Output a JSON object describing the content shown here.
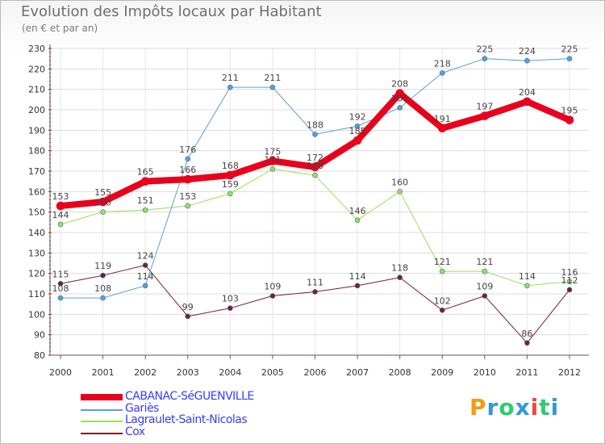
{
  "title": "Evolution des Impôts locaux par Habitant",
  "subtitle": "(en € et par an)",
  "brand": {
    "text": "Proxiti",
    "colors": [
      "#f39c12",
      "#3498db",
      "#2ecc71",
      "#3498db",
      "#e74c3c",
      "#2ecc71",
      "#3498db"
    ]
  },
  "chart_data": {
    "type": "line",
    "title": "Evolution des Impôts locaux par Habitant",
    "ylabel": "(en € et par an)",
    "xlabel": "",
    "x": [
      "2000",
      "2001",
      "2002",
      "2003",
      "2004",
      "2005",
      "2006",
      "2007",
      "2008",
      "2009",
      "2010",
      "2011",
      "2012"
    ],
    "ylim": [
      80,
      230
    ],
    "yticks": [
      80,
      90,
      100,
      110,
      120,
      130,
      140,
      150,
      160,
      170,
      180,
      190,
      200,
      210,
      220,
      230
    ],
    "grid": true,
    "series": [
      {
        "name": "CABANAC-SéGUENVILLE",
        "color": "#e8001c",
        "width": 8,
        "values": [
          153,
          155,
          165,
          166,
          168,
          175,
          172,
          185,
          208,
          191,
          197,
          204,
          195
        ],
        "labels": [
          "153",
          "155",
          "165",
          "166",
          "168",
          "175",
          "172",
          "185",
          "208",
          "191",
          "197",
          "204",
          "195"
        ]
      },
      {
        "name": "Gariès",
        "color": "#5a9fd4",
        "width": 1,
        "values": [
          108,
          108,
          114,
          176,
          211,
          211,
          188,
          192,
          201,
          218,
          225,
          224,
          225
        ],
        "labels": [
          "108",
          "108",
          "114",
          "176",
          "211",
          "211",
          "188",
          "192",
          "201",
          "218",
          "225",
          "224",
          "225"
        ]
      },
      {
        "name": "Lagraulet-Saint-Nicolas",
        "color": "#99e05a",
        "width": 1,
        "values": [
          144,
          150,
          151,
          153,
          159,
          171,
          168,
          146,
          160,
          121,
          121,
          114,
          116
        ],
        "labels": [
          "144",
          "150",
          "151",
          "153",
          "159",
          "171",
          "168",
          "146",
          "160",
          "121",
          "121",
          "114",
          "116"
        ]
      },
      {
        "name": "Cox",
        "color": "#7a1f25",
        "width": 1,
        "values": [
          115,
          119,
          124,
          99,
          103,
          109,
          111,
          114,
          118,
          102,
          109,
          86,
          112
        ],
        "labels": [
          "115",
          "119",
          "124",
          "99",
          "103",
          "109",
          "111",
          "114",
          "118",
          "102",
          "109",
          "86",
          "112"
        ]
      }
    ]
  }
}
